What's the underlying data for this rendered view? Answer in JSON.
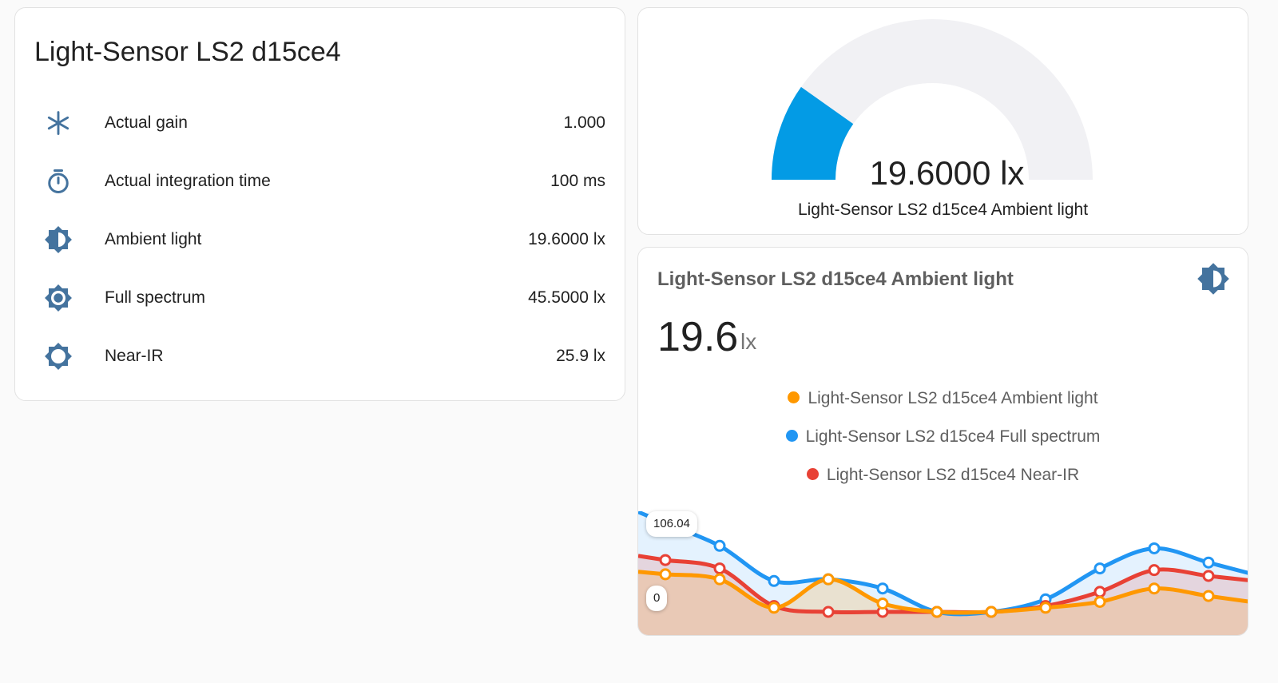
{
  "entities_card": {
    "title": "Light-Sensor LS2 d15ce4",
    "rows": [
      {
        "icon": "asterisk-icon",
        "label": "Actual gain",
        "value": "1.000"
      },
      {
        "icon": "timer-icon",
        "label": "Actual integration time",
        "value": "100 ms"
      },
      {
        "icon": "brightness-half-icon",
        "label": "Ambient light",
        "value": "19.6000 lx"
      },
      {
        "icon": "brightness-full-icon",
        "label": "Full spectrum",
        "value": "45.5000 lx"
      },
      {
        "icon": "brightness-outline-icon",
        "label": "Near-IR",
        "value": "25.9 lx"
      }
    ]
  },
  "gauge_card": {
    "value_text": "19.6000 lx",
    "name": "Light-Sensor LS2 d15ce4 Ambient light",
    "fraction": 0.196,
    "color": "#039be5",
    "track_color": "#f1f1f4"
  },
  "sensor_card": {
    "name": "Light-Sensor LS2 d15ce4 Ambient light",
    "icon": "brightness-half-icon",
    "value": "19.6",
    "unit": "lx",
    "max_label": "106.04",
    "min_label": "0"
  },
  "chart_data": {
    "type": "area",
    "ylim": [
      0,
      106.04
    ],
    "legend_position": "top-center",
    "series": [
      {
        "name": "Light-Sensor LS2 d15ce4 Ambient light",
        "color": "#ff9800",
        "values": [
          45,
          39,
          5,
          39,
          10,
          0,
          0,
          5,
          12,
          28,
          19
        ]
      },
      {
        "name": "Light-Sensor LS2 d15ce4 Full spectrum",
        "color": "#2196f3",
        "values": [
          106.04,
          79,
          37,
          39,
          28,
          0,
          0,
          15,
          52,
          76,
          59
        ]
      },
      {
        "name": "Light-Sensor LS2 d15ce4 Near-IR",
        "color": "#e84135",
        "values": [
          62,
          52,
          7,
          0,
          0,
          0,
          0,
          7,
          24,
          50,
          43
        ]
      }
    ]
  }
}
